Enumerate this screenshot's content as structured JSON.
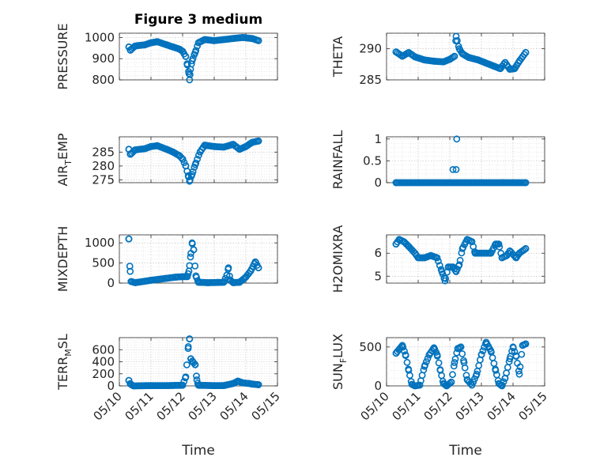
{
  "figure": {
    "title": "Figure 3 medium"
  },
  "colors": {
    "marker": "#0072BD",
    "axes": "#262626",
    "grid": "#b8b8b8"
  },
  "chart_data": [
    {
      "type": "scatter",
      "ylabel": "PRESSURE",
      "ylabel_sub": "",
      "ylabel_tail": "",
      "xlim": [
        "05/10",
        "05/15"
      ],
      "ylim": [
        800,
        1020
      ],
      "yticks": [
        800,
        900,
        1000
      ],
      "grid": true,
      "xticks": [
        "05/10",
        "05/11",
        "05/12",
        "05/13",
        "05/14",
        "05/15"
      ],
      "show_xticklabels": false,
      "xlabel": "",
      "marker": "circle",
      "day_range": [
        10.3,
        14.4
      ],
      "knots": [
        [
          10.3,
          955
        ],
        [
          10.35,
          940
        ],
        [
          10.5,
          960
        ],
        [
          10.8,
          965
        ],
        [
          11.0,
          975
        ],
        [
          11.2,
          980
        ],
        [
          11.5,
          965
        ],
        [
          11.7,
          955
        ],
        [
          11.9,
          945
        ],
        [
          12.0,
          935
        ],
        [
          12.1,
          910
        ],
        [
          12.15,
          870
        ],
        [
          12.2,
          830
        ],
        [
          12.22,
          800
        ],
        [
          12.25,
          850
        ],
        [
          12.3,
          890
        ],
        [
          12.4,
          930
        ],
        [
          12.5,
          975
        ],
        [
          12.7,
          990
        ],
        [
          13.0,
          985
        ],
        [
          13.3,
          990
        ],
        [
          13.6,
          995
        ],
        [
          13.9,
          1000
        ],
        [
          14.2,
          995
        ],
        [
          14.4,
          985
        ]
      ],
      "count": 90
    },
    {
      "type": "scatter",
      "ylabel": "THETA",
      "ylabel_sub": "",
      "ylabel_tail": "",
      "xlim": [
        "05/10",
        "05/15"
      ],
      "ylim": [
        285,
        292.5
      ],
      "yticks": [
        285,
        290
      ],
      "grid": true,
      "xticks": [
        "05/10",
        "05/11",
        "05/12",
        "05/13",
        "05/14",
        "05/15"
      ],
      "show_xticklabels": false,
      "xlabel": "",
      "marker": "circle",
      "day_range": [
        10.3,
        14.4
      ],
      "knots": [
        [
          10.3,
          289.5
        ],
        [
          10.5,
          288.8
        ],
        [
          10.7,
          289.4
        ],
        [
          10.9,
          288.7
        ],
        [
          11.2,
          288.2
        ],
        [
          11.5,
          288.0
        ],
        [
          11.8,
          287.9
        ],
        [
          12.0,
          288.3
        ],
        [
          12.15,
          288.8
        ],
        [
          12.2,
          292.0
        ],
        [
          12.3,
          290.0
        ],
        [
          12.4,
          289.2
        ],
        [
          12.6,
          288.6
        ],
        [
          12.9,
          288.2
        ],
        [
          13.1,
          287.8
        ],
        [
          13.4,
          287.2
        ],
        [
          13.6,
          286.8
        ],
        [
          13.75,
          287.8
        ],
        [
          13.9,
          286.7
        ],
        [
          14.05,
          286.8
        ],
        [
          14.2,
          288.0
        ],
        [
          14.4,
          289.4
        ]
      ],
      "count": 90
    },
    {
      "type": "scatter",
      "ylabel": "AIR",
      "ylabel_sub": "T",
      "ylabel_tail": "EMP",
      "xlim": [
        "05/10",
        "05/15"
      ],
      "ylim": [
        274,
        290.5
      ],
      "yticks": [
        275,
        280,
        285
      ],
      "grid": true,
      "xticks": [
        "05/10",
        "05/11",
        "05/12",
        "05/13",
        "05/14",
        "05/15"
      ],
      "show_xticklabels": false,
      "xlabel": "",
      "marker": "circle",
      "day_range": [
        10.3,
        14.4
      ],
      "knots": [
        [
          10.3,
          286.0
        ],
        [
          10.35,
          284.2
        ],
        [
          10.5,
          285.8
        ],
        [
          10.8,
          286.2
        ],
        [
          11.0,
          287.0
        ],
        [
          11.2,
          287.3
        ],
        [
          11.5,
          286.0
        ],
        [
          11.7,
          285.0
        ],
        [
          11.9,
          283.7
        ],
        [
          12.0,
          282.5
        ],
        [
          12.1,
          280.0
        ],
        [
          12.18,
          276.5
        ],
        [
          12.22,
          274.5
        ],
        [
          12.3,
          277.0
        ],
        [
          12.4,
          280.5
        ],
        [
          12.55,
          285.0
        ],
        [
          12.7,
          287.5
        ],
        [
          13.0,
          287.0
        ],
        [
          13.3,
          286.8
        ],
        [
          13.6,
          287.8
        ],
        [
          13.8,
          286.0
        ],
        [
          14.0,
          287.0
        ],
        [
          14.2,
          288.5
        ],
        [
          14.4,
          289.0
        ]
      ],
      "count": 90
    },
    {
      "type": "scatter",
      "ylabel": "RAINFALL",
      "ylabel_sub": "",
      "ylabel_tail": "",
      "xlim": [
        "05/10",
        "05/15"
      ],
      "ylim": [
        0,
        1.05
      ],
      "yticks": [
        0,
        0.5,
        1
      ],
      "grid": true,
      "xticks": [
        "05/10",
        "05/11",
        "05/12",
        "05/13",
        "05/14",
        "05/15"
      ],
      "show_xticklabels": false,
      "xlabel": "",
      "marker": "circle",
      "day_range": [
        10.3,
        14.4
      ],
      "knots": [
        [
          10.3,
          0.0
        ],
        [
          14.4,
          0.0
        ]
      ],
      "count": 90,
      "extra": [
        [
          12.1,
          0.3
        ],
        [
          12.2,
          0.3
        ],
        [
          12.22,
          1.0
        ]
      ]
    },
    {
      "type": "scatter",
      "ylabel": "MIXDEPTH",
      "ylabel_sub": "",
      "ylabel_tail": "",
      "xlim": [
        "05/10",
        "05/15"
      ],
      "ylim": [
        0,
        1200
      ],
      "yticks": [
        0,
        500,
        1000
      ],
      "grid": true,
      "xticks": [
        "05/10",
        "05/11",
        "05/12",
        "05/13",
        "05/14",
        "05/15"
      ],
      "show_xticklabels": false,
      "xlabel": "",
      "marker": "circle",
      "day_range": [
        10.3,
        14.4
      ],
      "knots": [
        [
          10.3,
          1100
        ],
        [
          10.33,
          420
        ],
        [
          10.37,
          40
        ],
        [
          10.5,
          10
        ],
        [
          11.0,
          70
        ],
        [
          11.5,
          120
        ],
        [
          11.8,
          150
        ],
        [
          12.0,
          160
        ],
        [
          12.15,
          160
        ],
        [
          12.2,
          300
        ],
        [
          12.25,
          650
        ],
        [
          12.3,
          1000
        ],
        [
          12.35,
          830
        ],
        [
          12.42,
          180
        ],
        [
          12.5,
          20
        ],
        [
          12.8,
          10
        ],
        [
          13.1,
          15
        ],
        [
          13.3,
          20
        ],
        [
          13.4,
          200
        ],
        [
          13.45,
          380
        ],
        [
          13.5,
          80
        ],
        [
          13.6,
          10
        ],
        [
          13.8,
          20
        ],
        [
          14.0,
          150
        ],
        [
          14.15,
          300
        ],
        [
          14.3,
          530
        ],
        [
          14.4,
          380
        ]
      ],
      "count": 95
    },
    {
      "type": "scatter",
      "ylabel": "H2OMIXRA",
      "ylabel_sub": "",
      "ylabel_tail": "",
      "xlim": [
        "05/10",
        "05/15"
      ],
      "ylim": [
        4.7,
        6.8
      ],
      "yticks": [
        5,
        6
      ],
      "grid": true,
      "xticks": [
        "05/10",
        "05/11",
        "05/12",
        "05/13",
        "05/14",
        "05/15"
      ],
      "show_xticklabels": false,
      "xlabel": "",
      "marker": "circle",
      "day_range": [
        10.3,
        14.4
      ],
      "knots": [
        [
          10.3,
          6.4
        ],
        [
          10.4,
          6.6
        ],
        [
          10.55,
          6.5
        ],
        [
          10.7,
          6.3
        ],
        [
          10.9,
          6.0
        ],
        [
          11.0,
          5.8
        ],
        [
          11.2,
          5.8
        ],
        [
          11.4,
          5.9
        ],
        [
          11.6,
          5.8
        ],
        [
          11.75,
          5.2
        ],
        [
          11.85,
          4.8
        ],
        [
          11.95,
          5.4
        ],
        [
          12.1,
          5.4
        ],
        [
          12.2,
          5.2
        ],
        [
          12.3,
          5.5
        ],
        [
          12.4,
          6.2
        ],
        [
          12.55,
          6.6
        ],
        [
          12.7,
          6.5
        ],
        [
          12.8,
          6.0
        ],
        [
          13.1,
          6.0
        ],
        [
          13.3,
          6.0
        ],
        [
          13.45,
          6.4
        ],
        [
          13.55,
          6.4
        ],
        [
          13.65,
          5.8
        ],
        [
          13.8,
          5.9
        ],
        [
          13.9,
          6.1
        ],
        [
          14.1,
          5.8
        ],
        [
          14.2,
          6.0
        ],
        [
          14.4,
          6.2
        ]
      ],
      "count": 90
    },
    {
      "type": "scatter",
      "ylabel": "TERR",
      "ylabel_sub": "M",
      "ylabel_tail": "SL",
      "xlim": [
        "05/10",
        "05/15"
      ],
      "ylim": [
        0,
        800
      ],
      "yticks": [
        0,
        200,
        400,
        600
      ],
      "grid": true,
      "xticks": [
        "05/10",
        "05/11",
        "05/12",
        "05/13",
        "05/14",
        "05/15"
      ],
      "show_xticklabels": true,
      "xlabel": "Time",
      "marker": "circle",
      "day_range": [
        10.3,
        14.4
      ],
      "knots": [
        [
          10.3,
          90
        ],
        [
          10.35,
          30
        ],
        [
          10.45,
          0
        ],
        [
          11.0,
          5
        ],
        [
          11.5,
          5
        ],
        [
          12.0,
          10
        ],
        [
          12.1,
          150
        ],
        [
          12.18,
          650
        ],
        [
          12.22,
          780
        ],
        [
          12.26,
          450
        ],
        [
          12.32,
          400
        ],
        [
          12.4,
          350
        ],
        [
          12.45,
          100
        ],
        [
          12.5,
          10
        ],
        [
          13.0,
          5
        ],
        [
          13.3,
          5
        ],
        [
          13.6,
          40
        ],
        [
          13.75,
          80
        ],
        [
          13.9,
          50
        ],
        [
          14.1,
          40
        ],
        [
          14.2,
          30
        ],
        [
          14.4,
          20
        ]
      ],
      "count": 95
    },
    {
      "type": "scatter",
      "ylabel": "SUN",
      "ylabel_sub": "F",
      "ylabel_tail": "LUX",
      "xlim": [
        "05/10",
        "05/15"
      ],
      "ylim": [
        0,
        620
      ],
      "yticks": [
        0,
        500
      ],
      "grid": true,
      "xticks": [
        "05/10",
        "05/11",
        "05/12",
        "05/13",
        "05/14",
        "05/15"
      ],
      "show_xticklabels": true,
      "xlabel": "Time",
      "marker": "circle",
      "day_range": [
        10.3,
        14.4
      ],
      "knots": [
        [
          10.3,
          420
        ],
        [
          10.4,
          470
        ],
        [
          10.5,
          520
        ],
        [
          10.6,
          400
        ],
        [
          10.7,
          200
        ],
        [
          10.8,
          20
        ],
        [
          10.9,
          0
        ],
        [
          11.05,
          10
        ],
        [
          11.2,
          250
        ],
        [
          11.35,
          400
        ],
        [
          11.5,
          490
        ],
        [
          11.6,
          400
        ],
        [
          11.7,
          200
        ],
        [
          11.8,
          30
        ],
        [
          11.9,
          0
        ],
        [
          12.05,
          50
        ],
        [
          12.15,
          300
        ],
        [
          12.25,
          480
        ],
        [
          12.35,
          500
        ],
        [
          12.45,
          300
        ],
        [
          12.55,
          80
        ],
        [
          12.7,
          10
        ],
        [
          12.85,
          150
        ],
        [
          13.0,
          400
        ],
        [
          13.15,
          560
        ],
        [
          13.3,
          450
        ],
        [
          13.45,
          200
        ],
        [
          13.55,
          30
        ],
        [
          13.65,
          0
        ],
        [
          13.75,
          100
        ],
        [
          13.9,
          350
        ],
        [
          14.0,
          500
        ],
        [
          14.1,
          380
        ],
        [
          14.2,
          150
        ],
        [
          14.3,
          520
        ],
        [
          14.4,
          540
        ]
      ],
      "count": 95
    }
  ]
}
